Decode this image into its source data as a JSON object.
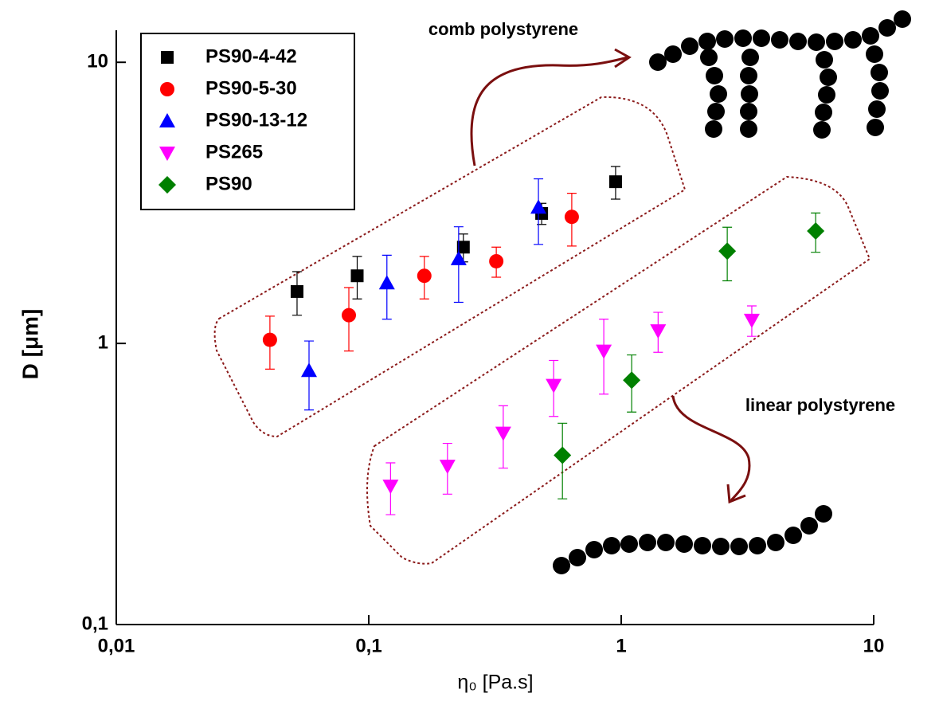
{
  "chart_data": {
    "type": "scatter",
    "xlabel": "η₀ [Pa.s]",
    "ylabel": "D [μm]",
    "xscale": "log",
    "yscale": "log",
    "xlim": [
      0.01,
      10
    ],
    "ylim": [
      0.1,
      13
    ],
    "xticks": [
      {
        "value": 0.01,
        "label": "0,01"
      },
      {
        "value": 0.1,
        "label": "0,1"
      },
      1,
      10
    ],
    "yticks": [
      {
        "value": 0.1,
        "label": "0,1"
      },
      1,
      10
    ],
    "legend": "upper left",
    "annotations": [
      "comb polystyrene",
      "linear polystyrene"
    ],
    "series": [
      {
        "name": "PS90-4-42",
        "color": "#000000",
        "marker": "square",
        "x": [
          0.052,
          0.09,
          0.237,
          0.484,
          0.95
        ],
        "values": [
          1.53,
          1.74,
          2.2,
          2.9,
          3.76
        ],
        "errors": [
          0.27,
          0.3,
          0.25,
          0.25,
          0.5
        ]
      },
      {
        "name": "PS90-5-30",
        "color": "#ff0000",
        "marker": "circle",
        "x": [
          0.0406,
          0.0834,
          0.166,
          0.32,
          0.637
        ],
        "values": [
          1.03,
          1.26,
          1.74,
          1.96,
          2.82
        ],
        "errors": [
          0.22,
          0.32,
          0.3,
          0.24,
          0.6
        ]
      },
      {
        "name": "PS90-13-12",
        "color": "#0000ff",
        "marker": "triangle-up",
        "x": [
          0.058,
          0.118,
          0.227,
          0.47
        ],
        "values": [
          0.8,
          1.64,
          2.0,
          3.05
        ],
        "errors": [
          0.22,
          0.42,
          0.6,
          0.8
        ]
      },
      {
        "name": "PS265",
        "color": "#ff00ff",
        "marker": "triangle-down",
        "x": [
          0.122,
          0.205,
          0.341,
          0.54,
          0.853,
          1.4,
          3.29
        ],
        "values": [
          0.311,
          0.366,
          0.48,
          0.71,
          0.94,
          1.11,
          1.21
        ],
        "errors": [
          0.065,
          0.075,
          0.12,
          0.16,
          0.28,
          0.18,
          0.15
        ]
      },
      {
        "name": "PS90",
        "color": "#008000",
        "marker": "diamond",
        "x": [
          0.585,
          1.1,
          2.63,
          5.89
        ],
        "values": [
          0.4,
          0.74,
          2.13,
          2.51
        ],
        "errors": [
          0.12,
          0.17,
          0.46,
          0.4
        ]
      }
    ]
  }
}
